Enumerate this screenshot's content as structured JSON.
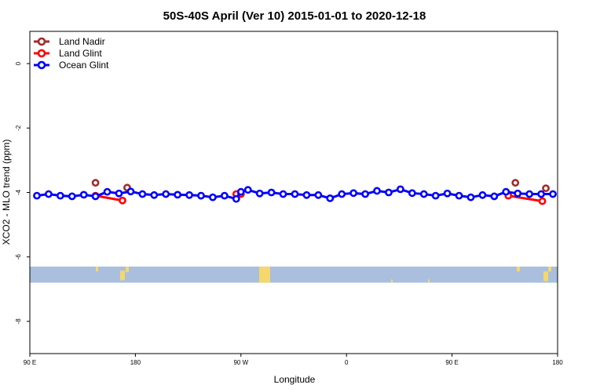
{
  "chart_data": {
    "type": "line",
    "title": "50S-40S April (Ver 10)   2015-01-01 to 2020-12-18",
    "xlabel": "Longitude",
    "ylabel": "XCO2 - MLO trend (ppm)",
    "xlim": [
      90,
      540
    ],
    "ylim": [
      -9,
      1
    ],
    "x_ticks": [
      {
        "value": 90,
        "label": "90 E"
      },
      {
        "value": 180,
        "label": "180"
      },
      {
        "value": 270,
        "label": "90 W"
      },
      {
        "value": 360,
        "label": "0"
      },
      {
        "value": 450,
        "label": "90 E"
      },
      {
        "value": 540,
        "label": "180"
      }
    ],
    "y_ticks": [
      {
        "value": 0,
        "label": "0"
      },
      {
        "value": -2,
        "label": "-2"
      },
      {
        "value": -4,
        "label": "-4"
      },
      {
        "value": -6,
        "label": "-6"
      },
      {
        "value": -8,
        "label": "-8"
      }
    ],
    "grid": false,
    "legend_position": "top-left",
    "land_band": {
      "y_range": [
        -6.8,
        -6.3
      ],
      "ocean_color": "#a9bfdd",
      "land_color": "#f5d76e"
    },
    "series": [
      {
        "name": "Land Nadir",
        "color": "#a52a2a",
        "points": [
          [
            146,
            -3.7
          ],
          [
            173,
            -3.85
          ],
          [
            504,
            -3.7
          ],
          [
            530,
            -3.87
          ]
        ]
      },
      {
        "name": "Land Glint",
        "color": "#ff0000",
        "segments": [
          [
            [
              146,
              -4.1
            ],
            [
              169,
              -4.25
            ]
          ],
          [
            [
              266,
              -4.05
            ],
            [
              270,
              -4.05
            ]
          ],
          [
            [
              498,
              -4.1
            ],
            [
              527,
              -4.27
            ]
          ]
        ],
        "points": [
          [
            146,
            -4.1
          ],
          [
            169,
            -4.25
          ],
          [
            266,
            -4.05
          ],
          [
            270,
            -4.05
          ],
          [
            498,
            -4.1
          ],
          [
            527,
            -4.27
          ]
        ]
      },
      {
        "name": "Ocean Glint",
        "color": "#0000ff",
        "x": [
          96,
          106,
          116,
          126,
          136,
          146,
          156,
          166,
          176,
          186,
          196,
          206,
          216,
          226,
          236,
          246,
          256,
          266,
          270,
          276,
          286,
          296,
          306,
          316,
          326,
          336,
          346,
          356,
          366,
          376,
          386,
          396,
          406,
          416,
          426,
          436,
          446,
          456,
          466,
          476,
          486,
          496,
          506,
          516,
          526,
          536
        ],
        "y": [
          -4.1,
          -4.05,
          -4.1,
          -4.12,
          -4.07,
          -4.12,
          -3.98,
          -4.03,
          -3.97,
          -4.05,
          -4.08,
          -4.05,
          -4.07,
          -4.08,
          -4.1,
          -4.15,
          -4.1,
          -4.2,
          -3.98,
          -3.92,
          -4.03,
          -4.0,
          -4.05,
          -4.05,
          -4.08,
          -4.08,
          -4.18,
          -4.05,
          -4.02,
          -4.05,
          -3.95,
          -4.0,
          -3.9,
          -4.02,
          -4.05,
          -4.1,
          -4.03,
          -4.1,
          -4.15,
          -4.08,
          -4.12,
          -3.98,
          -4.03,
          -4.05,
          -4.05,
          -4.05
        ]
      }
    ]
  }
}
